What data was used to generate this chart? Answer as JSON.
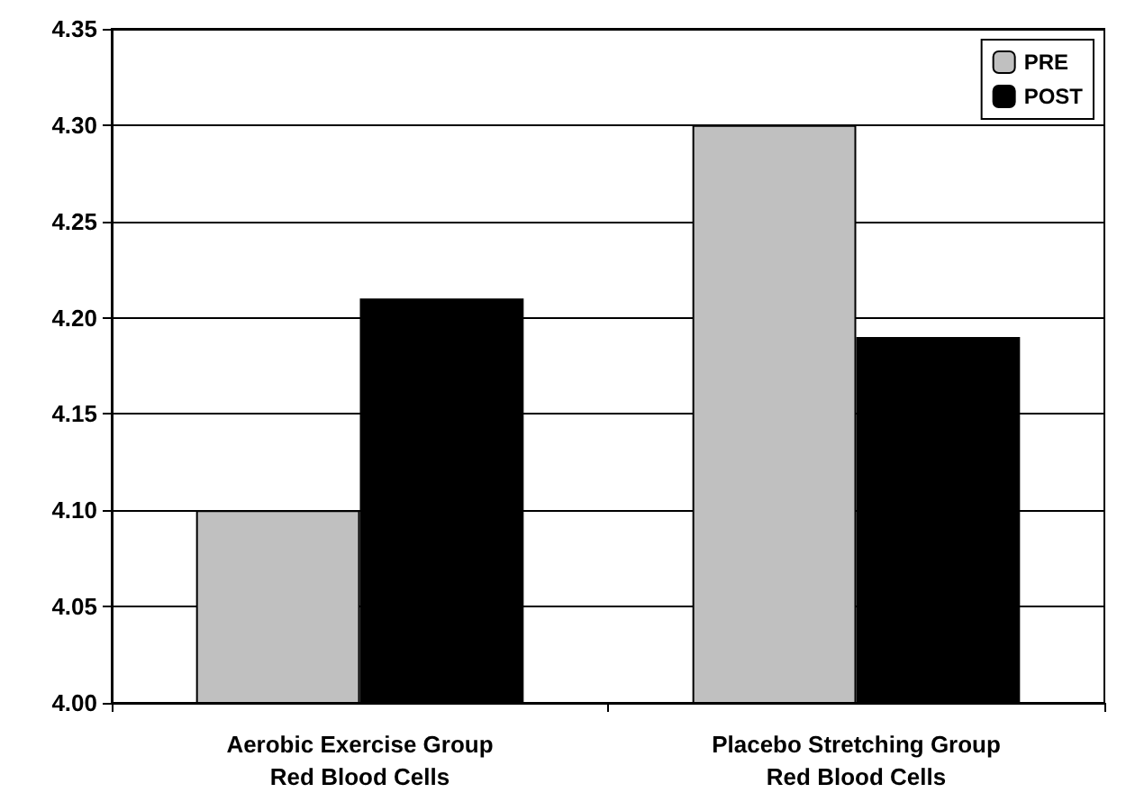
{
  "chart_data": {
    "type": "bar",
    "categories": [
      "Aerobic Exercise Group\nRed Blood Cells",
      "Placebo Stretching Group\nRed Blood Cells"
    ],
    "series": [
      {
        "name": "PRE",
        "color": "#c0c0c0",
        "values": [
          4.1,
          4.3
        ]
      },
      {
        "name": "POST",
        "color": "#000000",
        "values": [
          4.21,
          4.19
        ]
      }
    ],
    "ylim": [
      4.0,
      4.35
    ],
    "yticks": [
      {
        "value": 4.0,
        "label": "4.00"
      },
      {
        "value": 4.05,
        "label": "4.05"
      },
      {
        "value": 4.1,
        "label": "4.10"
      },
      {
        "value": 4.15,
        "label": "4.15"
      },
      {
        "value": 4.2,
        "label": "4.20"
      },
      {
        "value": 4.25,
        "label": "4.25"
      },
      {
        "value": 4.3,
        "label": "4.30"
      },
      {
        "value": 4.35,
        "label": "4.35"
      }
    ],
    "grid": "y",
    "legend": "top right"
  }
}
